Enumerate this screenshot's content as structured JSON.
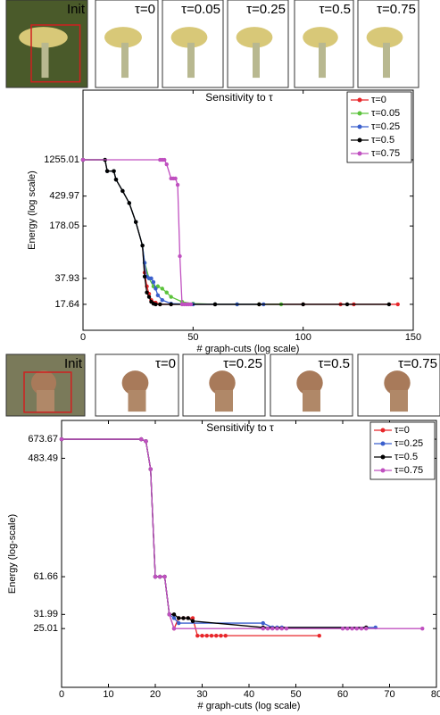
{
  "thumbnails": [
    {
      "labels": [
        "Init",
        "τ=0",
        "τ=0.05",
        "τ=0.25",
        "τ=0.5",
        "τ=0.75"
      ]
    },
    {
      "labels": [
        "Init",
        "τ=0",
        "τ=0.25",
        "τ=0.5",
        "τ=0.75"
      ]
    }
  ],
  "chart_data": [
    {
      "type": "line",
      "title": "Sensitivity to τ",
      "x_label": "# graph-cuts (log scale)",
      "y_label": "Energy (log scale)",
      "y_scale": "log",
      "legend": "top-right",
      "xlim": [
        0,
        150
      ],
      "xticks": [
        0,
        50,
        100,
        150
      ],
      "ylim": [
        8.2,
        9800
      ],
      "yticks": [
        17.64,
        37.93,
        178.05,
        429.97,
        1255.01
      ],
      "series": [
        {
          "name": "τ=0",
          "color": "#e8262a",
          "x": [
            0,
            10,
            11,
            14,
            15,
            18,
            21,
            24,
            27,
            28,
            29,
            30,
            31,
            33,
            35,
            40,
            60,
            80,
            100,
            117,
            123,
            143
          ],
          "values": [
            1255.01,
            1255.01,
            900,
            900,
            700,
            500,
            350,
            200,
            100,
            45,
            30,
            24,
            20,
            18.5,
            17.64,
            17.64,
            17.64,
            17.64,
            17.64,
            17.64,
            17.64,
            17.64
          ]
        },
        {
          "name": "τ=0.05",
          "color": "#5cc33c",
          "x": [
            0,
            10,
            11,
            14,
            15,
            18,
            21,
            24,
            27,
            28,
            30,
            32,
            34,
            36,
            38,
            40,
            45,
            50,
            60,
            70,
            80,
            90
          ],
          "values": [
            1255.01,
            1255.01,
            900,
            900,
            700,
            500,
            350,
            200,
            100,
            60,
            37.93,
            30,
            30,
            28,
            25,
            22,
            19,
            18,
            17.64,
            17.64,
            17.64,
            17.64
          ]
        },
        {
          "name": "τ=0.25",
          "color": "#3a5fcd",
          "x": [
            0,
            10,
            11,
            14,
            15,
            18,
            21,
            24,
            27,
            28,
            29,
            30,
            31,
            32,
            33,
            34,
            36,
            40,
            50,
            60,
            70,
            82
          ],
          "values": [
            1255.01,
            1255.01,
            900,
            900,
            700,
            500,
            350,
            200,
            100,
            60,
            40,
            37.93,
            37.93,
            34,
            28,
            23,
            20,
            18,
            17.64,
            17.64,
            17.64,
            17.64
          ]
        },
        {
          "name": "τ=0.5",
          "color": "#000000",
          "x": [
            0,
            10,
            11,
            14,
            15,
            18,
            21,
            24,
            27,
            28,
            29,
            30,
            31,
            32,
            33,
            35,
            40,
            60,
            80,
            100,
            120,
            139
          ],
          "values": [
            1255.01,
            1255.01,
            900,
            900,
            700,
            500,
            350,
            200,
            100,
            40,
            25,
            22,
            19,
            18,
            17.64,
            17.64,
            17.64,
            17.64,
            17.64,
            17.64,
            17.64,
            17.64
          ]
        },
        {
          "name": "τ=0.75",
          "color": "#c050c0",
          "x": [
            0,
            35,
            36,
            37,
            38,
            40,
            41,
            42,
            43,
            44,
            45,
            46,
            47,
            48,
            49
          ],
          "values": [
            1255.01,
            1255.01,
            1255.01,
            1255.01,
            1100,
            723,
            723,
            723,
            600,
            73,
            17.64,
            17.64,
            17.64,
            17.64,
            17.64
          ]
        }
      ]
    },
    {
      "type": "line",
      "title": "Sensitivity to τ",
      "x_label": "# graph-cuts (log scale)",
      "y_label": "Energy (log-scale)",
      "y_scale": "log",
      "legend": "top-right",
      "xlim": [
        0,
        80
      ],
      "xticks": [
        0,
        10,
        20,
        30,
        40,
        50,
        60,
        70,
        80
      ],
      "ylim": [
        9,
        934
      ],
      "yticks": [
        25.01,
        31.99,
        61.66,
        483.49,
        673.67
      ],
      "series": [
        {
          "name": "τ=0",
          "color": "#e8262a",
          "x": [
            0,
            17,
            18,
            19,
            20,
            21,
            22,
            23,
            24,
            25,
            26,
            27,
            28,
            29,
            30,
            31,
            32,
            33,
            34,
            35,
            55
          ],
          "values": [
            673.67,
            673.67,
            650,
            400,
            61.66,
            61.66,
            61.66,
            31.99,
            25.01,
            30,
            30,
            30,
            30,
            22.1,
            22.1,
            22.1,
            22.1,
            22.1,
            22.1,
            22.1,
            22.1
          ]
        },
        {
          "name": "τ=0.25",
          "color": "#3a5fcd",
          "x": [
            0,
            17,
            18,
            19,
            20,
            21,
            22,
            23,
            24,
            25,
            43,
            45,
            46,
            47,
            67
          ],
          "values": [
            673.67,
            673.67,
            650,
            400,
            61.66,
            61.66,
            61.66,
            31.99,
            30,
            27.5,
            27.5,
            25.5,
            25.5,
            25.5,
            25.5
          ]
        },
        {
          "name": "τ=0.5",
          "color": "#000000",
          "x": [
            0,
            17,
            18,
            19,
            20,
            21,
            22,
            23,
            24,
            25,
            26,
            27,
            28,
            43,
            65
          ],
          "values": [
            673.67,
            673.67,
            650,
            400,
            61.66,
            61.66,
            61.66,
            31.99,
            31.99,
            30,
            30,
            30,
            28.5,
            25.5,
            25.5
          ]
        },
        {
          "name": "τ=0.75",
          "color": "#c050c0",
          "x": [
            0,
            17,
            18,
            19,
            20,
            21,
            22,
            23,
            24,
            43,
            44,
            45,
            46,
            47,
            48,
            60,
            61,
            62,
            63,
            64,
            65,
            77
          ],
          "values": [
            673.67,
            673.67,
            650,
            400,
            61.66,
            61.66,
            61.66,
            31.99,
            25.01,
            25.01,
            25.01,
            25.01,
            25.01,
            25.01,
            25.01,
            25.01,
            25.01,
            25.01,
            25.01,
            25.01,
            25.01,
            25.01
          ]
        }
      ]
    }
  ]
}
